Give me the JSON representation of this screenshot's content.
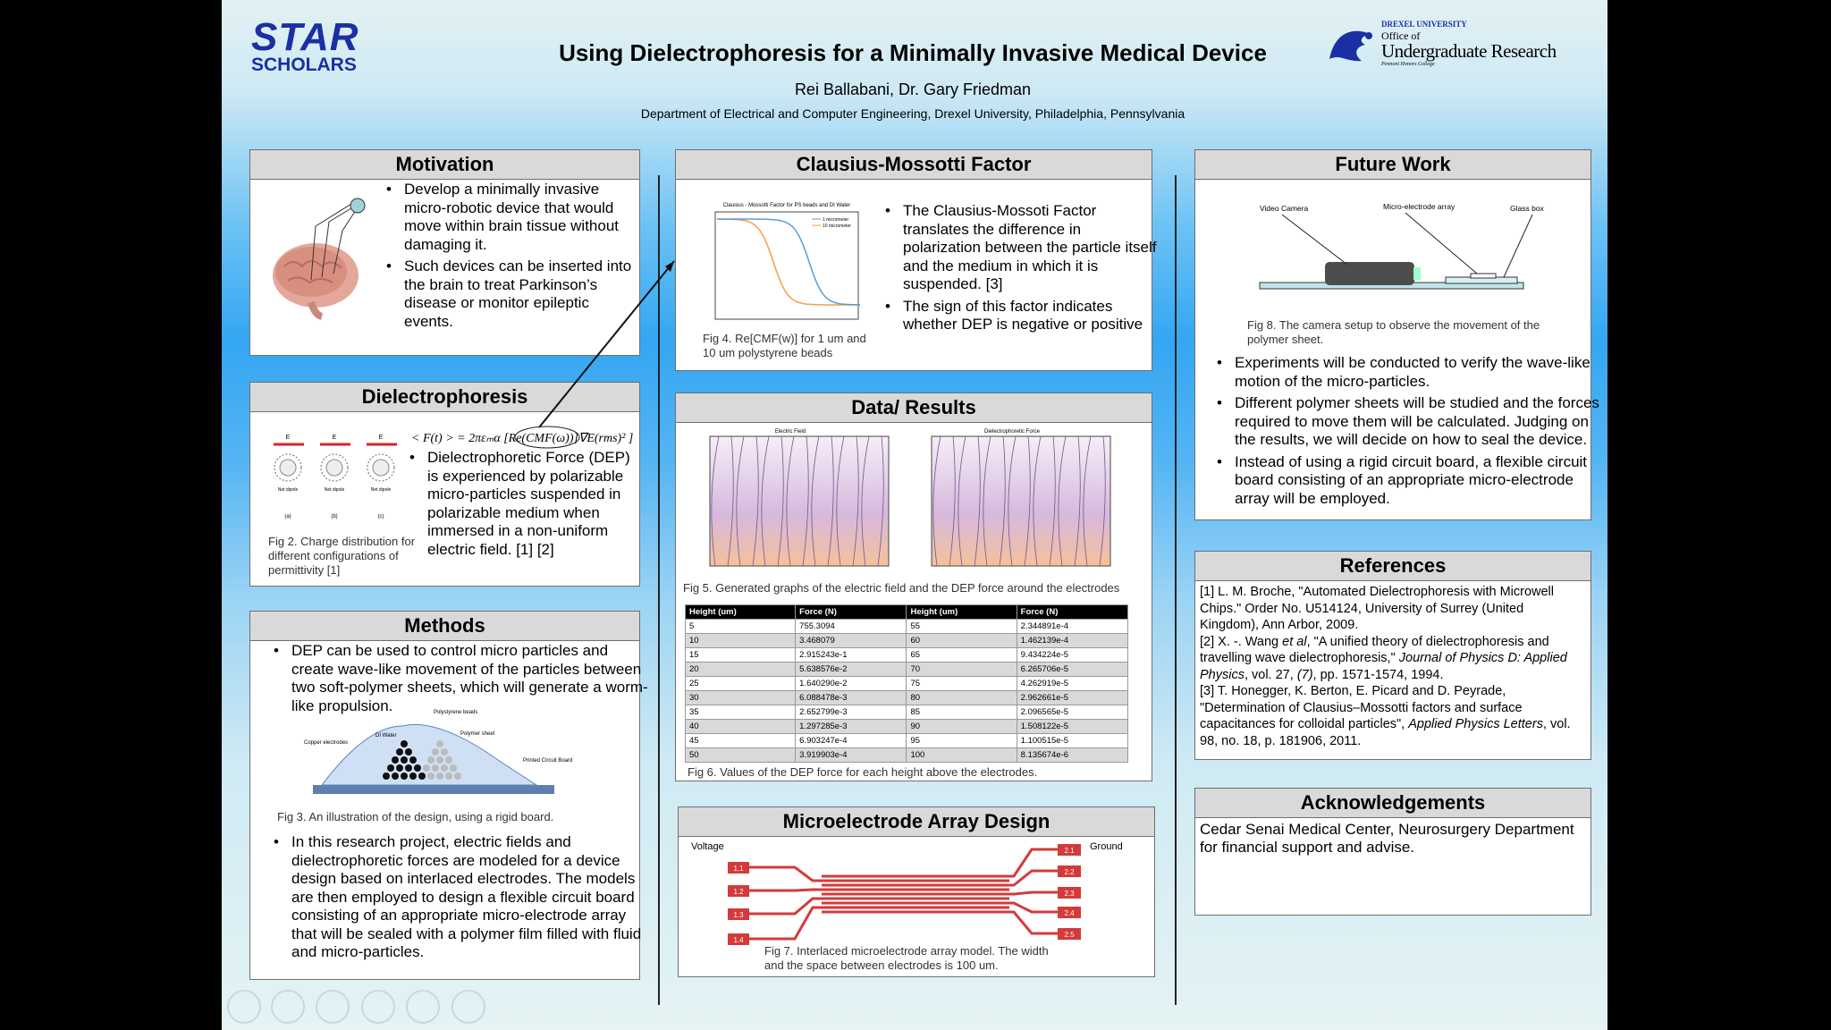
{
  "header": {
    "title": "Using Dielectrophoresis for a Minimally Invasive Medical Device",
    "authors": "Rei Ballabani, Dr. Gary Friedman",
    "department": "Department of Electrical and Computer Engineering, Drexel University, Philadelphia, Pennsylvania"
  },
  "logos": {
    "star": "STAR",
    "scholars": "SCHOLARS",
    "drexel": "DREXEL UNIVERSITY",
    "office": "Office of",
    "undergrad": "Undergraduate Research",
    "honors": "Pennoni Honors College"
  },
  "motivation": {
    "heading": "Motivation",
    "bullets": [
      "Develop a minimally invasive micro-robotic device that would move within brain tissue without damaging it.",
      "Such devices can be inserted into the brain to treat Parkinson’s disease or monitor epileptic events."
    ]
  },
  "dielectrophoresis": {
    "heading": "Dielectrophoresis",
    "equation": "< F(t) > = 2πεₘα [Re(CMF(ω))]∇E(rms)² ]",
    "bullets": [
      "Dielectrophoretic Force (DEP) is experienced by polarizable micro-particles suspended in polarizable medium when immersed in a non-uniform electric field. [1] [2]"
    ],
    "figure_labels": {
      "field": "E",
      "dipole": "Net dipole",
      "panels": [
        "(a)",
        "(b)",
        "(c)"
      ]
    },
    "caption": "Fig 2. Charge distribution for different configurations of permittivity [1]"
  },
  "methods": {
    "heading": "Methods",
    "bullets_top": [
      "DEP can be used to control micro particles and create wave-like movement of the particles between two soft-polymer sheets, which will generate a worm-like propulsion."
    ],
    "figure_labels": [
      "Copper electrodes",
      "DI Water",
      "Polystyrene beads",
      "Polymer sheet",
      "Printed Circuit Board"
    ],
    "caption": "Fig 3. An illustration of the design, using a rigid board.",
    "bullets_bottom": [
      "In this research project, electric fields and dielectrophoretic forces are modeled for a device design based on interlaced electrodes. The models are then employed to design a flexible circuit board consisting of an appropriate micro-electrode array that will be sealed with a polymer film filled with fluid and micro-particles."
    ]
  },
  "clausius": {
    "heading": "Clausius-Mossotti Factor",
    "plot_title": "Clausius - Mossotti Factor for PS beads and DI Water",
    "legend": [
      "1 micrometer",
      "10 micrometer"
    ],
    "caption": "Fig 4. Re[CMF(w)] for 1 um and 10 um polystyrene beads",
    "bullets": [
      "The Clausius-Mossoti Factor translates the difference in polarization between the particle itself and the medium in which it is suspended. [3]",
      "The sign of this factor indicates whether DEP is negative or positive"
    ]
  },
  "results": {
    "heading": "Data/ Results",
    "plot_titles": [
      "Electric Field",
      "Dielectrophoretic Force"
    ],
    "caption_fig5": "Fig 5. Generated graphs of the electric field and the DEP force around the electrodes",
    "table": {
      "header": [
        "Height (um)",
        "Force (N)",
        "Height (um)",
        "Force (N)"
      ],
      "rows": [
        [
          "5",
          "755.3094",
          "55",
          "2.344891e-4"
        ],
        [
          "10",
          "3.468079",
          "60",
          "1.462139e-4"
        ],
        [
          "15",
          "2.915243e-1",
          "65",
          "9.434224e-5"
        ],
        [
          "20",
          "5.638576e-2",
          "70",
          "6.265706e-5"
        ],
        [
          "25",
          "1.640290e-2",
          "75",
          "4.262919e-5"
        ],
        [
          "30",
          "6.088478e-3",
          "80",
          "2.962661e-5"
        ],
        [
          "35",
          "2.652799e-3",
          "85",
          "2.096565e-5"
        ],
        [
          "40",
          "1.297285e-3",
          "90",
          "1.508122e-5"
        ],
        [
          "45",
          "6.903247e-4",
          "95",
          "1.100515e-5"
        ],
        [
          "50",
          "3.919903e-4",
          "100",
          "8.135674e-6"
        ]
      ]
    },
    "caption_fig6": "Fig 6. Values of the DEP force for each height above the electrodes."
  },
  "microelectrode": {
    "heading": "Microelectrode Array Design",
    "voltage": "Voltage",
    "ground": "Ground",
    "left_pads": [
      "1.1",
      "1.2",
      "1.3",
      "1.4"
    ],
    "right_pads": [
      "2.1",
      "2.2",
      "2.3",
      "2.4",
      "2.5"
    ],
    "caption": "Fig 7. Interlaced microelectrode array model. The width and the space between electrodes is 100 um."
  },
  "future_work": {
    "heading": "Future Work",
    "figure_labels": [
      "Video Camera",
      "Micro-electrode array",
      "Glass box"
    ],
    "caption": "Fig 8. The camera setup to observe the movement of the polymer sheet.",
    "bullets": [
      "Experiments will be conducted to verify the wave-like motion of the micro-particles.",
      "Different polymer sheets will be studied and the forces required to move them will be calculated. Judging on the results, we will decide on how to seal the device.",
      "Instead of using a rigid circuit board, a flexible circuit board consisting of an appropriate micro-electrode array will be employed."
    ]
  },
  "references": {
    "heading": "References",
    "items": [
      [
        {
          "text": "[1] L. M. Broche, \"Automated Dielectrophoresis with Microwell Chips.\" Order No. U514124, University of Surrey (United Kingdom), Ann Arbor, 2009.",
          "italic": false
        }
      ],
      [
        {
          "text": "[2] X. -. Wang ",
          "italic": false
        },
        {
          "text": "et al",
          "italic": true
        },
        {
          "text": ", \"A unified theory of dielectrophoresis and travelling wave dielectrophoresis,\" ",
          "italic": false
        },
        {
          "text": "Journal of Physics D: Applied Physics",
          "italic": true
        },
        {
          "text": ", vol. 27, ",
          "italic": false
        },
        {
          "text": "(7)",
          "italic": true
        },
        {
          "text": ", pp. 1571-1574, 1994.",
          "italic": false
        }
      ],
      [
        {
          "text": "[3] T. Honegger, K. Berton, E. Picard and D. Peyrade, \"Determination of Clausius–Mossotti factors and surface capacitances for colloidal particles\", ",
          "italic": false
        },
        {
          "text": "Applied Physics Letters",
          "italic": true
        },
        {
          "text": ", vol. 98, no. 18, p. 181906, 2011.",
          "italic": false
        }
      ]
    ]
  },
  "acknowledgements": {
    "heading": "Acknowledgements",
    "text": "Cedar Senai Medical Center, Neurosurgery Department for financial support and advise."
  }
}
